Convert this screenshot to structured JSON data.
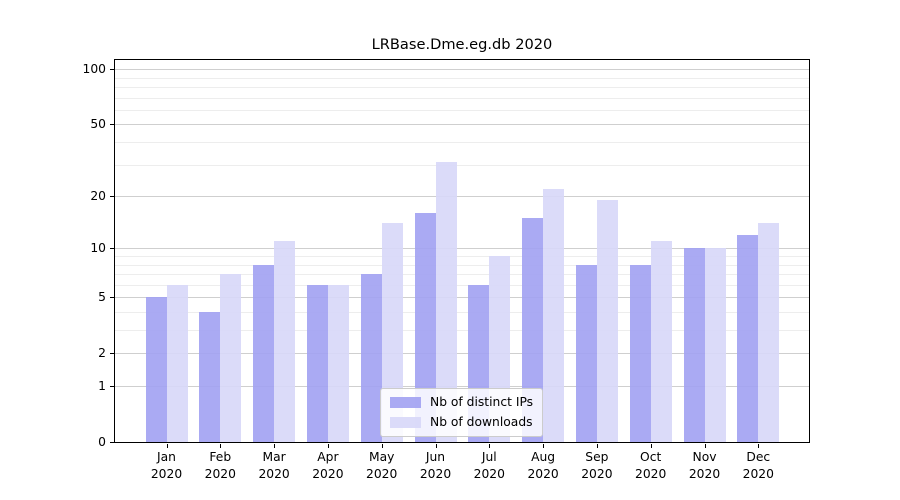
{
  "chart_data": {
    "type": "bar",
    "title": "LRBase.Dme.eg.db 2020",
    "categories": [
      "Jan",
      "Feb",
      "Mar",
      "Apr",
      "May",
      "Jun",
      "Jul",
      "Aug",
      "Sep",
      "Oct",
      "Nov",
      "Dec"
    ],
    "year": "2020",
    "series": [
      {
        "name": "Nb of distinct IPs",
        "color": "#a3a3f2",
        "values": [
          5,
          4,
          8,
          6,
          7,
          16,
          6,
          15,
          8,
          8,
          10,
          12
        ]
      },
      {
        "name": "Nb of downloads",
        "color": "#d8d8f9",
        "values": [
          6,
          7,
          11,
          6,
          14,
          31,
          9,
          22,
          19,
          11,
          10,
          14
        ]
      }
    ],
    "y_axis": {
      "scale": "log1p",
      "ticks": [
        0,
        1,
        2,
        5,
        10,
        20,
        50,
        100
      ],
      "minor_gridlines": [
        3,
        4,
        6,
        7,
        8,
        9,
        30,
        40,
        60,
        70,
        80,
        90
      ],
      "range": [
        0,
        100
      ]
    },
    "grid": "on",
    "legend_position": "inside-bottom-center",
    "colors": {
      "major_grid": "#cfcfcf",
      "minor_grid": "#ededed",
      "axis": "#000000",
      "text": "#000000",
      "background": "#ffffff"
    }
  }
}
